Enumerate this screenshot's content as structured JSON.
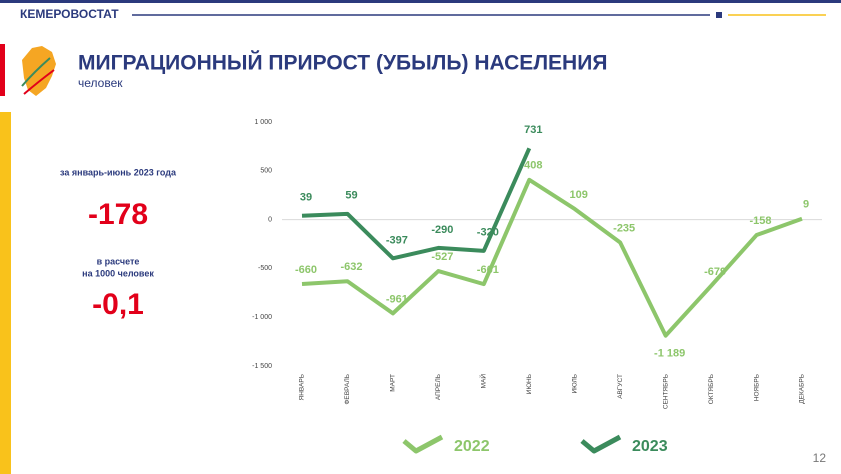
{
  "header": "КЕМЕРОВОСТАТ",
  "page_number": "12",
  "summary": {
    "period": "за январь-июнь 2023 года",
    "value": "-178",
    "per_lines": [
      "в расчете",
      "на 1000 человек"
    ],
    "per_value": "-0,1"
  },
  "chart_data": {
    "type": "line",
    "title": "МИГРАЦИОННЫЙ ПРИРОСТ (УБЫЛЬ) НАСЕЛЕНИЯ",
    "subtitle": "человек",
    "categories": [
      "ЯНВАРЬ",
      "ФЕВРАЛЬ",
      "МАРТ",
      "АПРЕЛЬ",
      "МАЙ",
      "ИЮНЬ",
      "ИЮЛЬ",
      "АВГУСТ",
      "СЕНТЯБРЬ",
      "ОКТЯБРЬ",
      "НОЯБРЬ",
      "ДЕКАБРЬ"
    ],
    "series": [
      {
        "name": "2022",
        "color": "#8dc66b",
        "values": [
          -660,
          -632,
          -961,
          -527,
          -661,
          408,
          109,
          -235,
          -1189,
          -679,
          -158,
          9
        ],
        "value_labels": [
          "-660",
          "-632",
          "-961",
          "-527",
          "-661",
          "408",
          "109",
          "-235",
          "-1 189",
          "-679",
          "-158",
          "9"
        ]
      },
      {
        "name": "2023",
        "color": "#3b8b5c",
        "values": [
          39,
          59,
          -397,
          -290,
          -320,
          731,
          null,
          null,
          null,
          null,
          null,
          null
        ]
      }
    ],
    "ylim": [
      -1500,
      1000
    ],
    "yticks": [
      {
        "value": -1500,
        "label": "-1 500"
      },
      {
        "value": -1000,
        "label": "-1 000"
      },
      -500,
      0,
      500,
      {
        "value": 1000,
        "label": "1 000"
      }
    ],
    "legend": "bottom"
  }
}
